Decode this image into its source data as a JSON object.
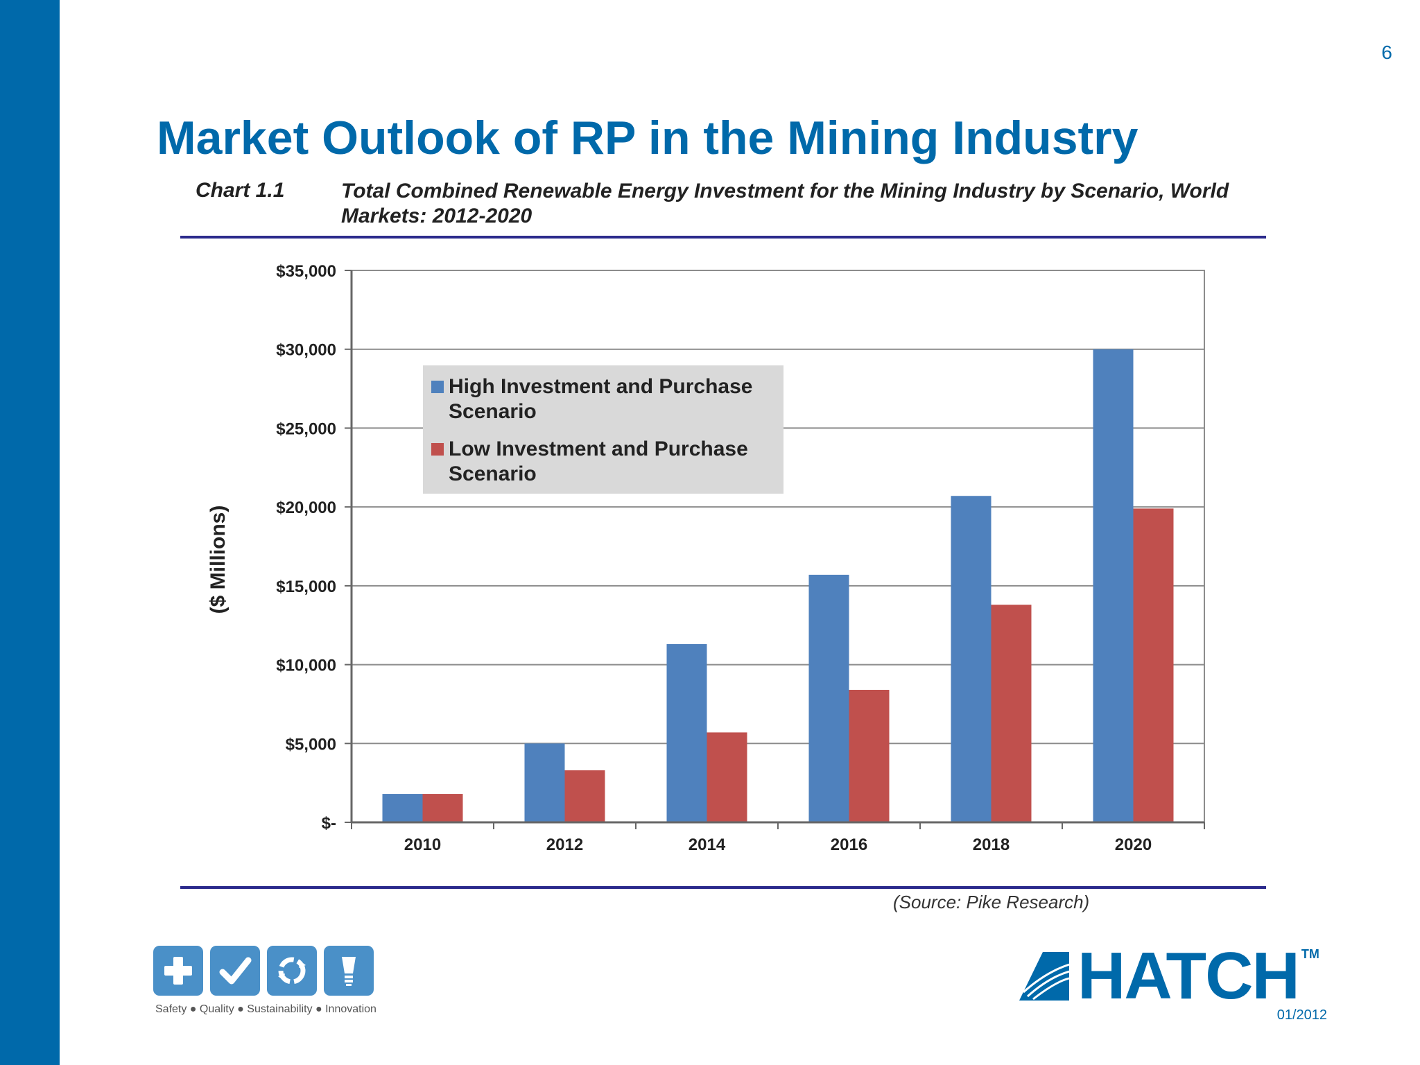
{
  "page": {
    "number": "6",
    "title": "Market Outlook of RP in the Mining Industry",
    "date": "01/2012"
  },
  "chart_caption": {
    "number": "Chart 1.1",
    "title": "Total Combined Renewable Energy Investment for the Mining Industry by Scenario, World Markets: 2012-2020"
  },
  "source": "(Source: Pike Research)",
  "footer": {
    "tagline": "Safety ● Quality ● Sustainability ● Innovation",
    "logo_text": "HATCH",
    "logo_tm": "TM",
    "icons": [
      "plus-icon",
      "checkmark-icon",
      "recycle-icon",
      "lightbulb-icon"
    ]
  },
  "colors": {
    "brand": "#0069aa",
    "high": "#4f81bd",
    "low": "#c0504d",
    "rule": "#2b2a8c",
    "legend_bg": "#d9d9d9"
  },
  "chart_data": {
    "type": "bar",
    "title": "Total Combined Renewable Energy Investment for the Mining Industry by Scenario, World Markets: 2012-2020",
    "xlabel": "",
    "ylabel": "($ Millions)",
    "ylim": [
      0,
      35000
    ],
    "yticks": [
      0,
      5000,
      10000,
      15000,
      20000,
      25000,
      30000,
      35000
    ],
    "ytick_labels": [
      "$-",
      "$5,000",
      "$10,000",
      "$15,000",
      "$20,000",
      "$25,000",
      "$30,000",
      "$35,000"
    ],
    "categories": [
      "2010",
      "2012",
      "2014",
      "2016",
      "2018",
      "2020"
    ],
    "series": [
      {
        "name": "High Investment and Purchase Scenario",
        "color": "#4f81bd",
        "values": [
          1800,
          5000,
          11300,
          15700,
          20700,
          30000
        ]
      },
      {
        "name": "Low Investment and Purchase Scenario",
        "color": "#c0504d",
        "values": [
          1800,
          3300,
          5700,
          8400,
          13800,
          19900
        ]
      }
    ],
    "legend": "upper-left inside plot",
    "grid": "horizontal"
  }
}
